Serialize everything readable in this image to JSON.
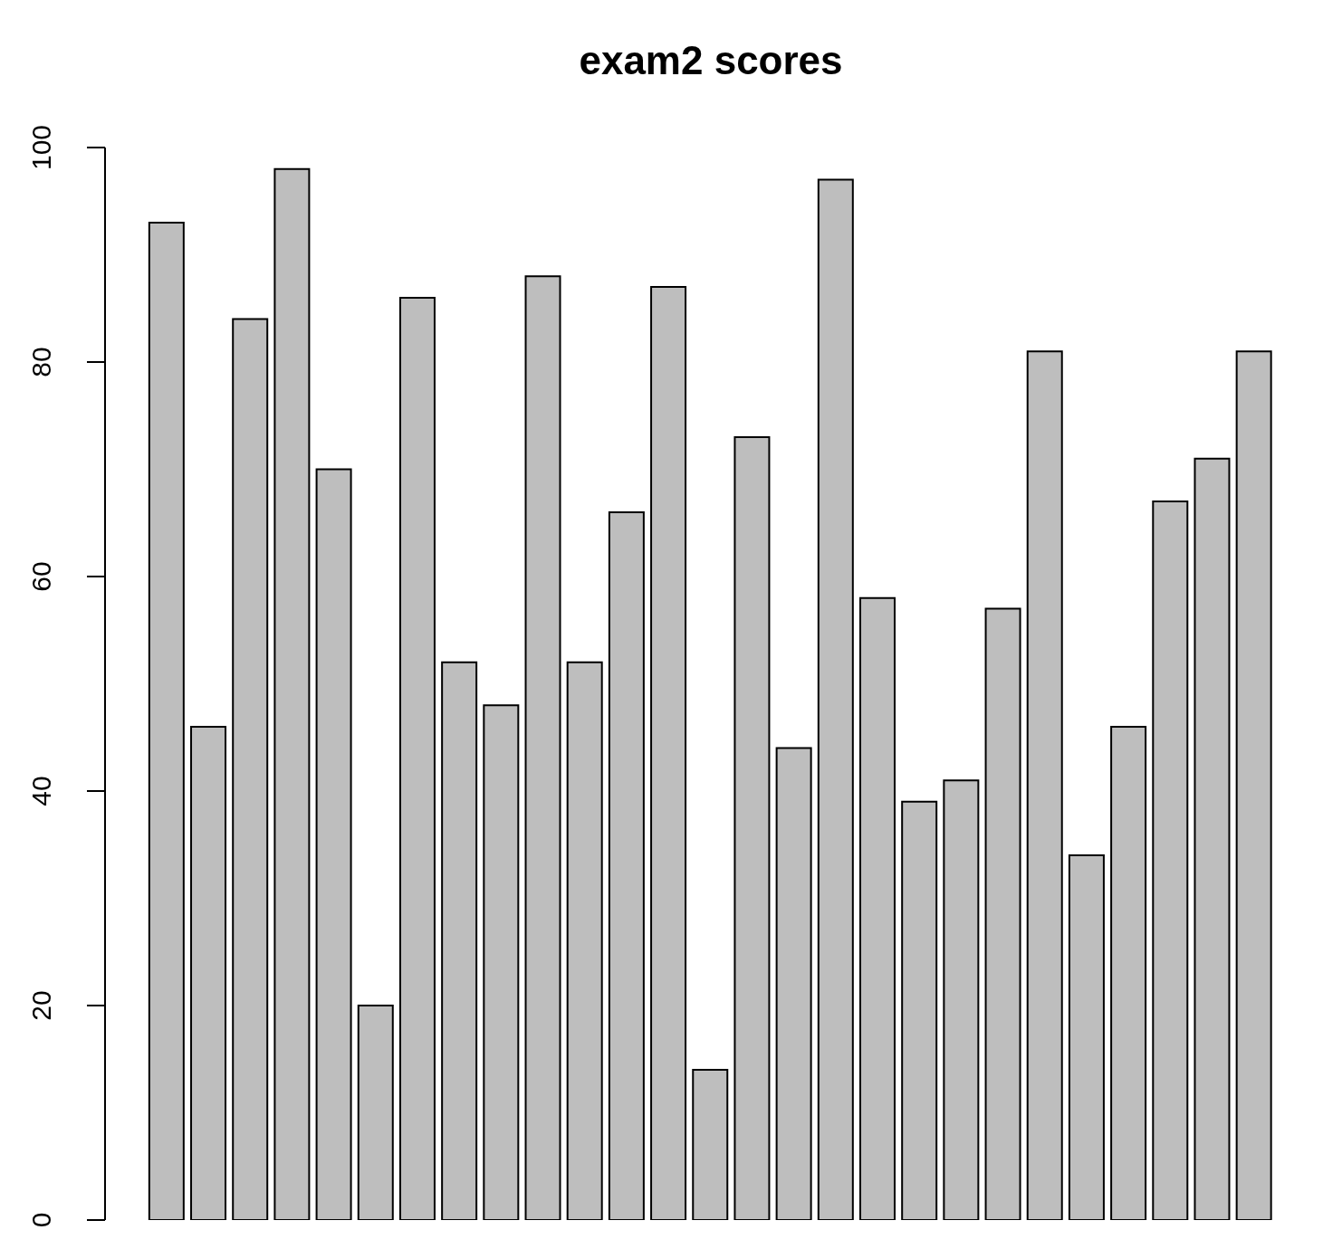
{
  "chart_data": {
    "type": "bar",
    "title": "exam2 scores",
    "categories": [
      null,
      null,
      null,
      null,
      null,
      null,
      null,
      null,
      null,
      null,
      null,
      null,
      null,
      null,
      null,
      null,
      null,
      null,
      null,
      null,
      null,
      null,
      null,
      null,
      null,
      null,
      null
    ],
    "values": [
      93,
      46,
      84,
      98,
      70,
      20,
      86,
      52,
      48,
      88,
      52,
      66,
      87,
      14,
      73,
      44,
      97,
      58,
      39,
      41,
      57,
      81,
      34,
      46,
      67,
      71,
      81
    ],
    "color": "#bebebe",
    "ylim": [
      0,
      100
    ],
    "yticks": [
      0,
      20,
      40,
      60,
      80,
      100
    ]
  }
}
